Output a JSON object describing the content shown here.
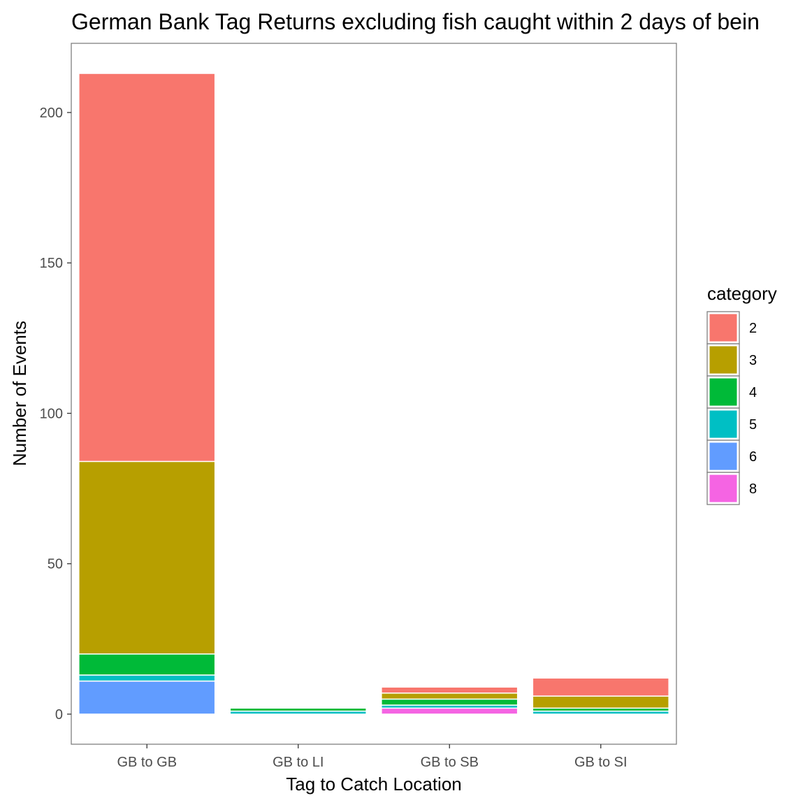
{
  "chart_data": {
    "type": "bar",
    "stacked": true,
    "title": "German Bank Tag Returns excluding fish caught within 2 days of bein",
    "xlabel": "Tag to Catch Location",
    "ylabel": "Number of Events",
    "categories": [
      "GB to GB",
      "GB to LI",
      "GB to SB",
      "GB to SI"
    ],
    "ylim": [
      -10,
      223
    ],
    "yticks": [
      0,
      50,
      100,
      150,
      200
    ],
    "grid": false,
    "legend": {
      "title": "category",
      "position": "right",
      "entries": [
        "2",
        "3",
        "4",
        "5",
        "6",
        "8"
      ]
    },
    "series": [
      {
        "name": "2",
        "color": "#F8766D",
        "values": [
          129,
          0,
          2,
          6
        ]
      },
      {
        "name": "3",
        "color": "#B79F00",
        "values": [
          64,
          0,
          2,
          4
        ]
      },
      {
        "name": "4",
        "color": "#00BA38",
        "values": [
          7,
          1,
          2,
          1
        ]
      },
      {
        "name": "5",
        "color": "#00BFC4",
        "values": [
          2,
          1,
          1,
          1
        ]
      },
      {
        "name": "6",
        "color": "#619CFF",
        "values": [
          11,
          0,
          0,
          0
        ]
      },
      {
        "name": "8",
        "color": "#F564E3",
        "values": [
          0,
          0,
          2,
          0
        ]
      }
    ]
  }
}
